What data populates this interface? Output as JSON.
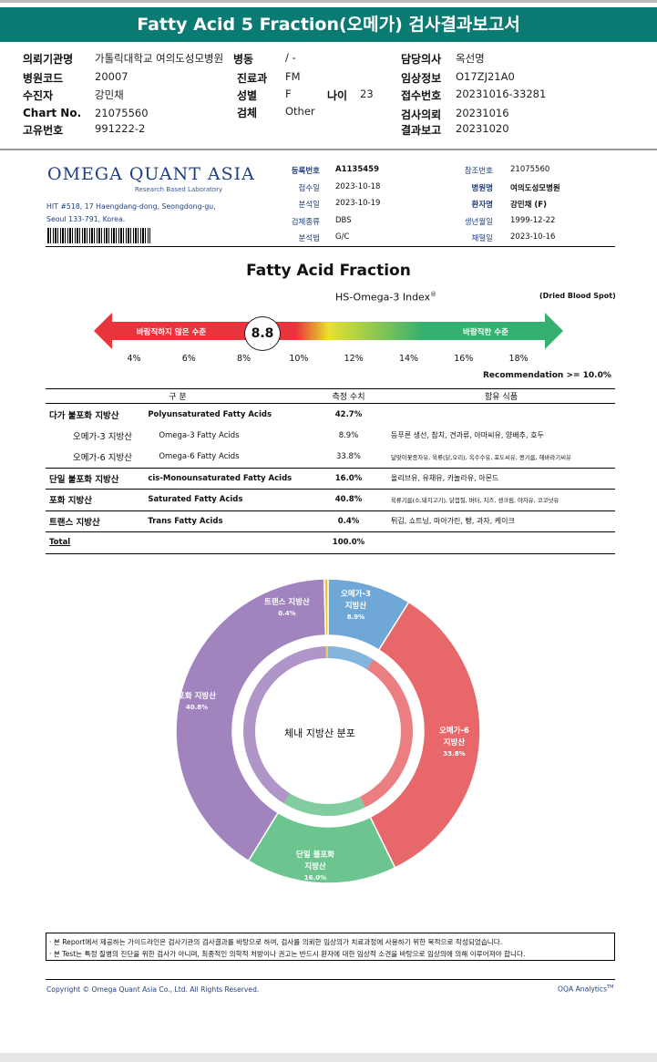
{
  "title": "Fatty Acid 5 Fraction(오메가) 검사결과보고서",
  "header": {
    "institution_label": "의뢰기관명",
    "institution": "가톨릭대학교 여의도성모병원",
    "ward_label": "병동",
    "ward": "/ -",
    "doctor_label": "담당의사",
    "doctor": "옥선명",
    "hospital_code_label": "병원코드",
    "hospital_code": "20007",
    "dept_label": "진료과",
    "dept": "FM",
    "clinical_label": "임상정보",
    "clinical": "O17ZJ21A0",
    "patient_label": "수진자",
    "patient": "강민채",
    "sex_label": "성별",
    "sex": "F",
    "age_label": "나이",
    "age": "23",
    "receipt_label": "접수번호",
    "receipt": "20231016-33281",
    "chart_label": "Chart No.",
    "chart": "21075560",
    "specimen_label": "검체",
    "specimen": "Other",
    "request_label": "검사의뢰",
    "request": "20231016",
    "uid_label": "고유번호",
    "uid": "991222-2",
    "report_label": "결과보고",
    "report": "20231020"
  },
  "lab": {
    "logo": "OMEGA QUANT ASIA",
    "logo_sub": "Research Based Laboratory",
    "address1": "HIT #518, 17 Haengdang-dong, Seongdong-gu,",
    "address2": "Seoul 133-791, Korea.",
    "fields": [
      {
        "label": "등록번호",
        "value": "A1135459"
      },
      {
        "label": "접수일",
        "value": "2023-10-18"
      },
      {
        "label": "분석일",
        "value": "2023-10-19"
      },
      {
        "label": "검체종류",
        "value": "DBS"
      },
      {
        "label": "분석법",
        "value": "G/C"
      }
    ],
    "fields2": [
      {
        "label": "참조번호",
        "value": "21075560"
      },
      {
        "label": "병원명",
        "value": "여의도성모병원"
      },
      {
        "label": "환자명",
        "value": "강민채 (F)"
      },
      {
        "label": "생년월일",
        "value": "1999-12-22"
      },
      {
        "label": "채혈일",
        "value": "2023-10-16"
      }
    ]
  },
  "index": {
    "section_title": "Fatty Acid Fraction",
    "title": "HS-Omega-3 Index",
    "sup": "®",
    "sample": "(Dried Blood Spot)",
    "value": "8.8",
    "bad_label": "바람직하지 않은 수준",
    "good_label": "바람직한 수준",
    "ticks": [
      "4%",
      "6%",
      "8%",
      "10%",
      "12%",
      "14%",
      "16%",
      "18%"
    ],
    "recommendation": "Recommendation  >= 10.0%",
    "colors": {
      "bad": "#e8343a",
      "mid": "#e8e030",
      "good": "#35b070"
    }
  },
  "table": {
    "headers": [
      "구 분",
      "측정 수치",
      "함유 식품"
    ],
    "rows": [
      {
        "kr": "다가 불포화 지방산",
        "en": "Polyunsaturated Fatty Acids",
        "value": "42.7%",
        "food": ""
      },
      {
        "kr": "오메가-3 지방산",
        "en": "Omega-3 Fatty Acids",
        "value": "8.9%",
        "food": "등푸른 생선, 참치, 견과류, 아마씨유, 양배추, 호두"
      },
      {
        "kr": "오메가-6 지방산",
        "en": "Omega-6 Fatty Acids",
        "value": "33.8%",
        "food": "달맞이꽃종자유, 육류(닭,오리), 옥수수유, 포도씨유, 콩기름, 해바라기씨유"
      },
      {
        "kr": "단일 불포화 지방산",
        "en": "cis-Monounsaturated Fatty Acids",
        "value": "16.0%",
        "food": "올리브유, 유채유, 카놀라유, 아몬드"
      },
      {
        "kr": "포화 지방산",
        "en": "Saturated Fatty Acids",
        "value": "40.8%",
        "food": "육류기름(소,돼지고기), 닭껍질, 버터, 치즈, 생크림, 야자유, 코코넛유"
      },
      {
        "kr": "트랜스 지방산",
        "en": "Trans Fatty Acids",
        "value": "0.4%",
        "food": "튀김, 쇼트닝, 마아가린, 빵, 과자, 케이크"
      }
    ],
    "total_label": "Total",
    "total": "100.0%"
  },
  "chart_data": {
    "type": "pie",
    "title": "체내 지방산 분포",
    "slices": [
      {
        "name": "오메가-3 지방산",
        "value": 8.9,
        "color": "#6fa8d6"
      },
      {
        "name": "오메가-6 지방산",
        "value": 33.8,
        "color": "#e8676b"
      },
      {
        "name": "단일 불포화 지방산",
        "value": 16.0,
        "color": "#6cc48f"
      },
      {
        "name": "포화 지방산",
        "value": 40.8,
        "color": "#a183be"
      },
      {
        "name": "트랜스 지방산",
        "value": 0.4,
        "color": "#f0c23c"
      }
    ],
    "labels": {
      "o3a": "오메가-3",
      "o3b": "지방산",
      "o3p": "8.9%",
      "o6a": "오메가-6",
      "o6b": "지방산",
      "o6p": "33.8%",
      "moa": "단일 불포화",
      "mob": "지방산",
      "mop": "16.0%",
      "sa": "포화 지방산",
      "sp": "40.8%",
      "ta": "트랜스 지방산",
      "tp": "0.4%"
    }
  },
  "notes": [
    "· 본 Report에서 제공하는 가이드라인은 검사기관의 검사결과를 바탕으로 하여, 검사를 의뢰한 임상의가 치료과정에 사용하기 위한 목적으로 작성되었습니다.",
    "· 본 Test는 특정 질병의 진단을 위한 검사가 아니며, 최종적인 의학적 처방이나 권고는 반드시 환자에 대한 임상적 소견을 바탕으로 임상의에 의해 이루어져야 합니다."
  ],
  "footer": {
    "copyright": "Copyright © Omega Quant Asia Co., Ltd.  All Rights Reserved.",
    "brand": "OQA Analytics",
    "tm": "TM"
  }
}
